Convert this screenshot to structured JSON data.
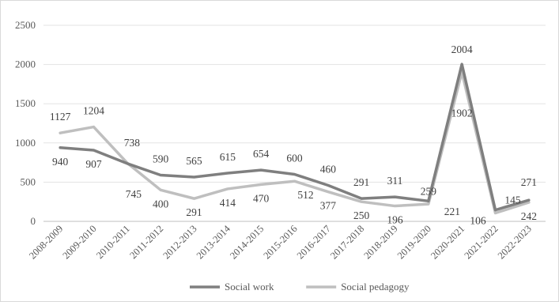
{
  "chart_data": {
    "type": "line",
    "title": "",
    "xlabel": "",
    "ylabel": "",
    "ylim": [
      0,
      2500
    ],
    "yticks": [
      0,
      500,
      1000,
      1500,
      2000,
      2500
    ],
    "grid": "horizontal",
    "legend_position": "bottom",
    "categories": [
      "2008-2009",
      "2009-2010",
      "2010-2011",
      "2011-2012",
      "2012-2013",
      "2013-2014",
      "2014-2015",
      "2015-2016",
      "2016-2017",
      "2017-2018",
      "2018-2019",
      "2019-2020",
      "2020-2021",
      "2021-2022",
      "2022-2023"
    ],
    "series": [
      {
        "name": "Social work",
        "color": "#7f7f7f",
        "values": [
          940,
          907,
          738,
          590,
          565,
          615,
          654,
          600,
          460,
          291,
          311,
          259,
          2004,
          145,
          271
        ],
        "labels": [
          "940",
          "907",
          "",
          "590",
          "565",
          "615",
          "654",
          "600",
          "460",
          "291",
          "311",
          "259",
          "2004",
          "145",
          "271"
        ]
      },
      {
        "name": "Social pedagogy",
        "color": "#bfbfbf",
        "values": [
          1127,
          1204,
          745,
          400,
          291,
          414,
          470,
          512,
          377,
          250,
          196,
          221,
          1902,
          106,
          242
        ],
        "labels": [
          "1127",
          "1204",
          "",
          "400",
          "291",
          "414",
          "470",
          "512",
          "377",
          "250",
          "196",
          "221",
          "1902",
          "106",
          "242"
        ]
      }
    ],
    "extra_labels": [
      {
        "text": "738",
        "series": 0,
        "index": 2
      },
      {
        "text": "745",
        "series": 1,
        "index": 2
      }
    ]
  }
}
